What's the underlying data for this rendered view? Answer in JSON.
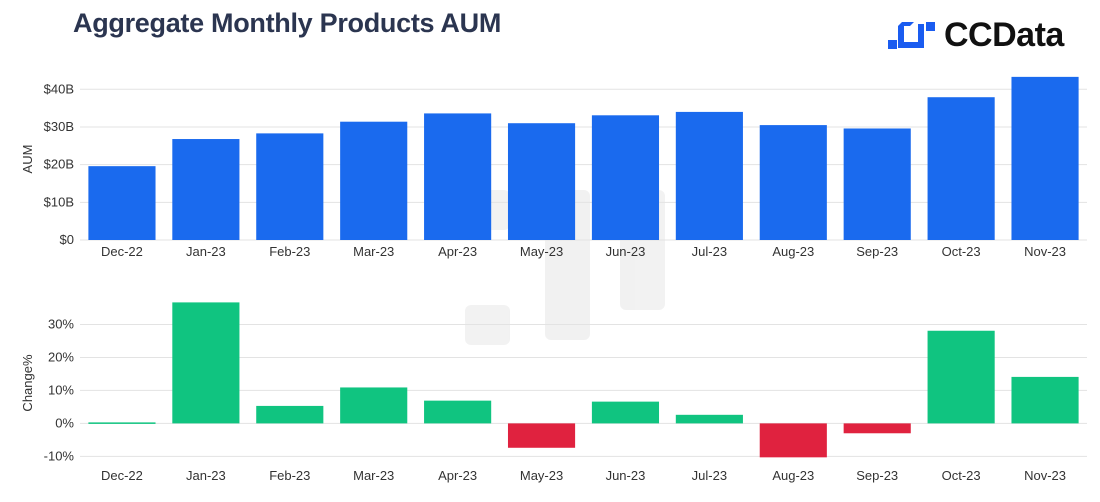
{
  "title": "Aggregate Monthly Products AUM",
  "brand": {
    "name": "CCData",
    "logo_icon": "ccdata-logo-icon",
    "accent": "#1a5cf0"
  },
  "colors": {
    "aum_bar": "#1a6aee",
    "positive": "#10c480",
    "negative": "#e0223f",
    "grid": "#e3e3e3",
    "axis_text": "#333333"
  },
  "chart_data": [
    {
      "type": "bar",
      "title": "",
      "ylabel": "AUM",
      "xlabel": "",
      "categories": [
        "Dec-22",
        "Jan-23",
        "Feb-23",
        "Mar-23",
        "Apr-23",
        "May-23",
        "Jun-23",
        "Jul-23",
        "Aug-23",
        "Sep-23",
        "Oct-23",
        "Nov-23"
      ],
      "values": [
        19.6,
        26.8,
        28.3,
        31.4,
        33.6,
        31.0,
        33.1,
        34.0,
        30.5,
        29.6,
        37.9,
        43.3
      ],
      "unit": "B USD",
      "ylim": [
        0,
        43
      ],
      "yticks": [
        0,
        10,
        20,
        30,
        40
      ],
      "ytick_labels": [
        "$0",
        "$10B",
        "$20B",
        "$30B",
        "$40B"
      ],
      "grid": true,
      "legend": "none"
    },
    {
      "type": "bar",
      "title": "",
      "ylabel": "Change%",
      "xlabel": "",
      "categories": [
        "Dec-22",
        "Jan-23",
        "Feb-23",
        "Mar-23",
        "Apr-23",
        "May-23",
        "Jun-23",
        "Jul-23",
        "Aug-23",
        "Sep-23",
        "Oct-23",
        "Nov-23"
      ],
      "values": [
        0.3,
        36.7,
        5.3,
        10.9,
        6.9,
        -7.4,
        6.6,
        2.6,
        -10.3,
        -3.0,
        28.1,
        14.1
      ],
      "unit": "%",
      "ylim": [
        -10.5,
        35
      ],
      "yticks": [
        -10,
        0,
        10,
        20,
        30
      ],
      "ytick_labels": [
        "-10%",
        "0%",
        "10%",
        "20%",
        "30%"
      ],
      "grid": true,
      "legend": "none"
    }
  ]
}
